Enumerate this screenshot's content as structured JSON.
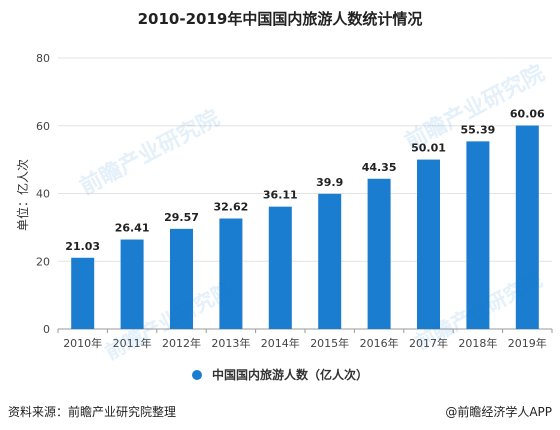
{
  "chart_data": {
    "type": "bar",
    "title": "2010-2019年中国国内旅游人数统计情况",
    "ylabel": "单位：亿人次",
    "xlabel": "",
    "categories": [
      "2010年",
      "2011年",
      "2012年",
      "2013年",
      "2014年",
      "2015年",
      "2016年",
      "2017年",
      "2018年",
      "2019年"
    ],
    "series": [
      {
        "name": "中国国内旅游人数（亿人次）",
        "values": [
          21.03,
          26.41,
          29.57,
          32.62,
          36.11,
          39.9,
          44.35,
          50.01,
          55.39,
          60.06
        ],
        "labels": [
          "21.03",
          "26.41",
          "29.57",
          "32.62",
          "36.11",
          "39.9",
          "44.35",
          "50.01",
          "55.39",
          "60.06"
        ]
      }
    ],
    "yticks": [
      0,
      20,
      40,
      60,
      80
    ],
    "ylim": [
      0,
      80
    ],
    "grid": true,
    "legend_position": "bottom",
    "bar_color": "#1a7dcf"
  },
  "footer": {
    "source": "资料来源：前瞻产业研究院整理",
    "brand": "@前瞻经济学人APP"
  },
  "watermark": {
    "text": "前瞻产业研究院"
  }
}
